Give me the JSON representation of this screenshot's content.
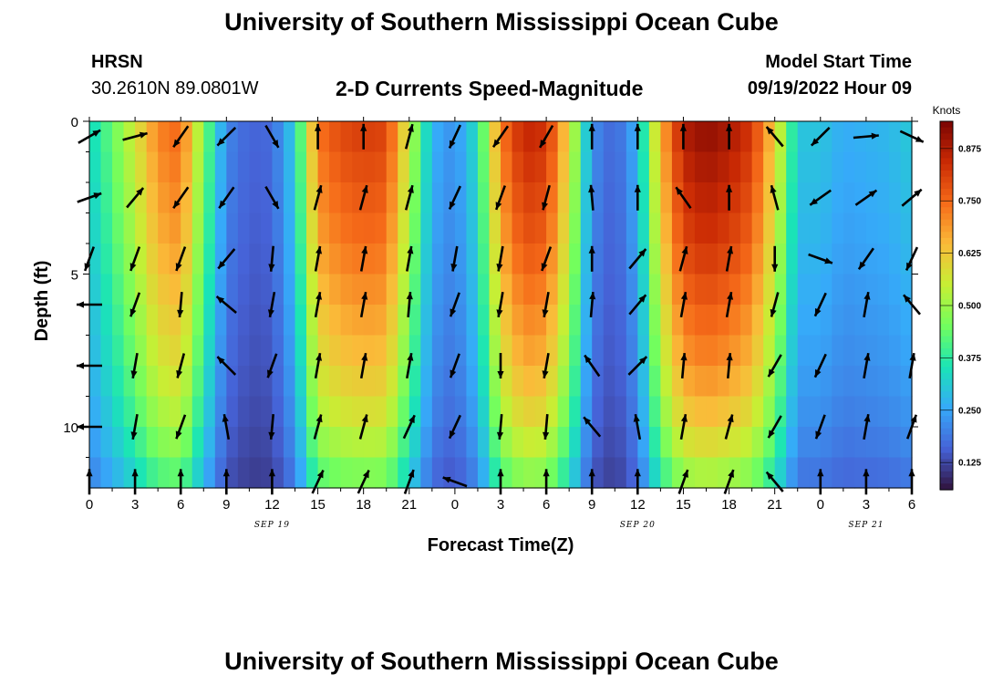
{
  "header": {
    "title": "University of Southern Mississippi Ocean Cube",
    "station": "HRSN",
    "coords": "30.2610N  89.0801W",
    "subtitle": "2-D Currents Speed-Magnitude",
    "model_label": "Model Start Time",
    "model_time": "09/19/2022 Hour 09"
  },
  "footer": {
    "title": "University of Southern Mississippi Ocean Cube"
  },
  "colors": {
    "scale": [
      "#30123b",
      "#4662d7",
      "#36aaf9",
      "#1ae4b6",
      "#72fe5e",
      "#c7ef34",
      "#fabb39",
      "#f66b19",
      "#ca2a04",
      "#7a0403"
    ],
    "arrow": "#000000"
  },
  "chart_data": {
    "type": "heatmap",
    "title": "2-D Currents Speed-Magnitude",
    "xlabel": "Forecast Time(Z)",
    "ylabel": "Depth (ft)",
    "x_range_hours": [
      0,
      54
    ],
    "y_range_ft": [
      0,
      12
    ],
    "x_tick_labels": [
      "0",
      "3",
      "6",
      "9",
      "12",
      "15",
      "18",
      "21",
      "0",
      "3",
      "6",
      "9",
      "12",
      "15",
      "18",
      "21",
      "0",
      "3",
      "6"
    ],
    "y_tick_labels": [
      "0",
      "5",
      "10"
    ],
    "y_tick_values": [
      0,
      5,
      10
    ],
    "date_labels": [
      {
        "text": "SEP 19",
        "hour": 12
      },
      {
        "text": "SEP 20",
        "hour": 36
      },
      {
        "text": "SEP 21",
        "hour": 51
      }
    ],
    "colorbar": {
      "label": "Knots",
      "min": 0.06,
      "max": 0.94,
      "ticks": [
        "0.125",
        "0.250",
        "0.375",
        "0.500",
        "0.625",
        "0.750",
        "0.875"
      ],
      "tick_values": [
        0.125,
        0.25,
        0.375,
        0.5,
        0.625,
        0.75,
        0.875
      ]
    },
    "speed_profile": {
      "hours": [
        0,
        1.5,
        3,
        4.5,
        6,
        7.5,
        9,
        10.5,
        12,
        13.5,
        15,
        16.5,
        18,
        19.5,
        21,
        22.5,
        24,
        25.5,
        27,
        28.5,
        30,
        31.5,
        33,
        34.5,
        36,
        37.5,
        39,
        40.5,
        42,
        43.5,
        45,
        46.5,
        48,
        49.5,
        51,
        52.5,
        54
      ],
      "surface_knots": [
        0.33,
        0.44,
        0.57,
        0.72,
        0.76,
        0.47,
        0.21,
        0.16,
        0.17,
        0.32,
        0.74,
        0.8,
        0.82,
        0.81,
        0.55,
        0.27,
        0.22,
        0.35,
        0.73,
        0.86,
        0.84,
        0.6,
        0.22,
        0.16,
        0.27,
        0.66,
        0.88,
        0.92,
        0.89,
        0.83,
        0.62,
        0.3,
        0.3,
        0.26,
        0.27,
        0.28,
        0.31
      ],
      "depth_factor_ft": [
        0,
        2,
        4,
        6,
        8,
        10,
        12
      ],
      "depth_factor": [
        1.0,
        0.95,
        0.9,
        0.83,
        0.76,
        0.66,
        0.5
      ]
    },
    "arrow_depths_ft": [
      0.5,
      2.5,
      4.5,
      6.0,
      8.0,
      10.0,
      11.8
    ],
    "arrow_hours": [
      0,
      3,
      6,
      9,
      12,
      15,
      18,
      21,
      24,
      27,
      30,
      33,
      36,
      39,
      42,
      45,
      48,
      51,
      54
    ],
    "arrow_directions_deg": [
      [
        60,
        75,
        215,
        225,
        150,
        0,
        0,
        15,
        205,
        215,
        210,
        0,
        0,
        0,
        0,
        320,
        225,
        85,
        115
      ],
      [
        70,
        40,
        215,
        215,
        150,
        15,
        15,
        15,
        205,
        200,
        195,
        355,
        0,
        325,
        0,
        345,
        235,
        55,
        50
      ],
      [
        200,
        200,
        200,
        220,
        185,
        10,
        10,
        10,
        190,
        190,
        200,
        0,
        40,
        15,
        10,
        180,
        110,
        215,
        205
      ],
      [
        270,
        200,
        185,
        310,
        190,
        10,
        10,
        5,
        200,
        190,
        190,
        5,
        40,
        10,
        10,
        195,
        205,
        10,
        320
      ],
      [
        270,
        190,
        195,
        315,
        200,
        10,
        10,
        10,
        200,
        180,
        190,
        325,
        45,
        5,
        5,
        210,
        205,
        10,
        10
      ],
      [
        270,
        190,
        200,
        350,
        185,
        15,
        15,
        25,
        205,
        185,
        185,
        320,
        350,
        10,
        15,
        210,
        200,
        10,
        20
      ],
      [
        0,
        0,
        0,
        0,
        0,
        25,
        25,
        20,
        290,
        0,
        0,
        0,
        0,
        20,
        20,
        320,
        0,
        0,
        0
      ]
    ]
  }
}
